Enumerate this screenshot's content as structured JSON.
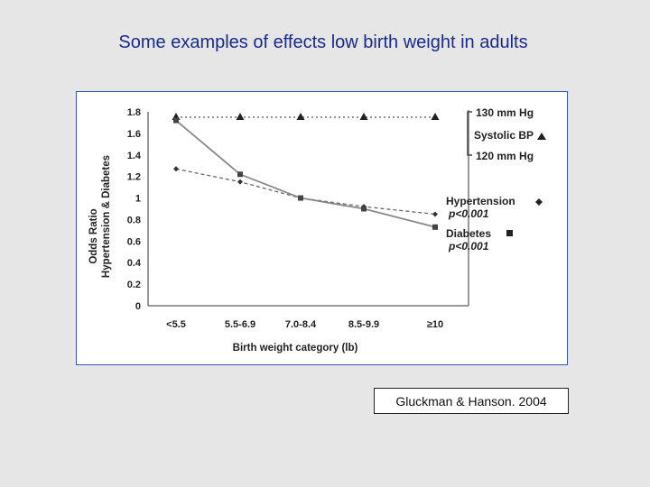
{
  "slide": {
    "title": "Some examples of effects low birth weight in adults",
    "citation": "Gluckman & Hanson. 2004"
  },
  "colors": {
    "background": "#e6e6e6",
    "title": "#1a2a8c",
    "frame_border": "#3a52c4"
  },
  "chart_data": {
    "type": "line",
    "title": "",
    "xlabel": "Birth weight category (lb)",
    "ylabel": "Odds Ratio",
    "ylabel2": "Hypertension & Diabetes",
    "categories": [
      "<5.5",
      "5.5-6.9",
      "7.0-8.4",
      "8.5-9.9",
      "≥10"
    ],
    "ylim": [
      0,
      1.8
    ],
    "yticks": [
      "0",
      "0.2",
      "0.4",
      "0.6",
      "0.8",
      "1",
      "1.2",
      "1.4",
      "1.6",
      "1.8"
    ],
    "series": [
      {
        "name": "Systolic BP",
        "marker": "triangle",
        "line": "dotted",
        "values": [
          1.75,
          1.75,
          1.75,
          1.75,
          1.75
        ]
      },
      {
        "name": "Hypertension",
        "marker": "diamond",
        "line": "dashed",
        "values": [
          1.27,
          1.15,
          1.0,
          0.92,
          0.85
        ]
      },
      {
        "name": "Diabetes",
        "marker": "square",
        "line": "solid",
        "values": [
          1.72,
          1.22,
          1.0,
          0.9,
          0.73
        ]
      }
    ],
    "legend": {
      "bp_top": "130 mm Hg",
      "bp_label": "Systolic BP",
      "bp_bottom": "120 mm Hg",
      "hyp_label": "Hypertension",
      "hyp_p": "p<0.001",
      "dia_label": "Diabetes",
      "dia_p": "p<0.001"
    }
  }
}
